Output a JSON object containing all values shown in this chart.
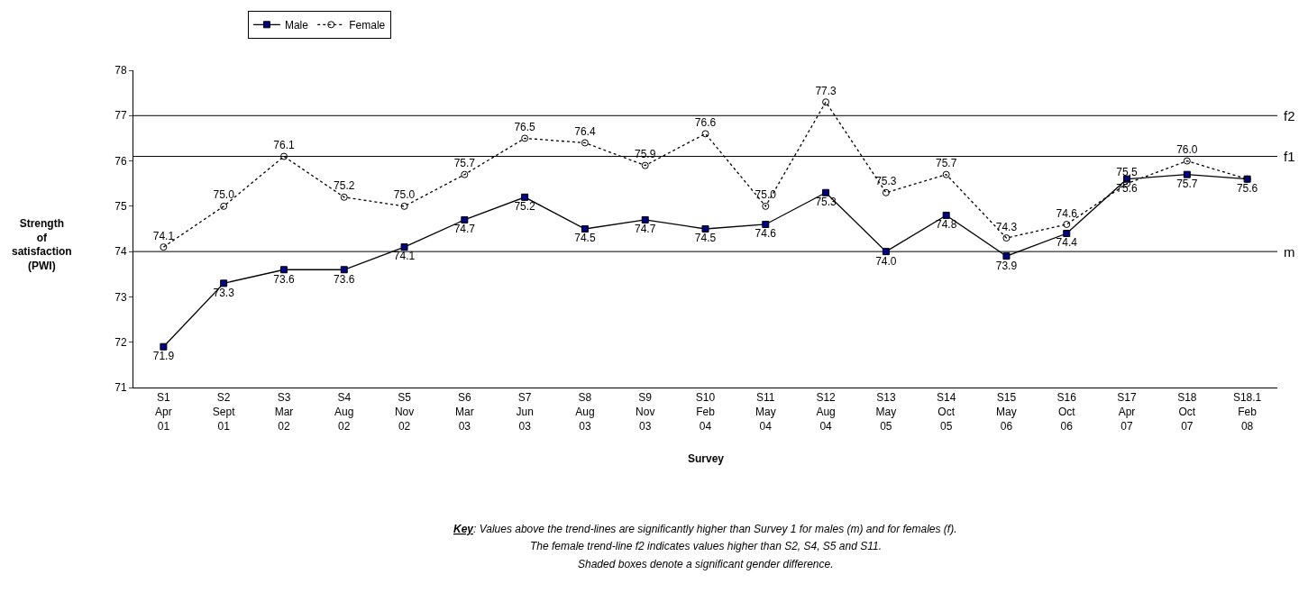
{
  "chart_data": {
    "type": "line",
    "categories": [
      "S1\nApr\n01",
      "S2\nSept\n01",
      "S3\nMar\n02",
      "S4\nAug\n02",
      "S5\nNov\n02",
      "S6\nMar\n03",
      "S7\nJun\n03",
      "S8\nAug\n03",
      "S9\nNov\n03",
      "S10\nFeb\n04",
      "S11\nMay\n04",
      "S12\nAug\n04",
      "S13\nMay\n05",
      "S14\nOct\n05",
      "S15\nMay\n06",
      "S16\nOct\n06",
      "S17\nApr\n07",
      "S18\nOct\n07",
      "S18.1\nFeb\n08"
    ],
    "series": [
      {
        "name": "Male",
        "color": "#000080",
        "marker": "square",
        "line_style": "solid",
        "values": [
          71.9,
          73.3,
          73.6,
          73.6,
          74.1,
          74.7,
          75.2,
          74.5,
          74.7,
          74.5,
          74.6,
          75.3,
          74.0,
          74.8,
          73.9,
          74.4,
          75.6,
          75.7,
          75.6
        ],
        "value_labels": [
          "71.9",
          "73.3",
          "73.6",
          "73.6",
          "74.1",
          "74.7",
          "75.2",
          "74.5",
          "74.7",
          "74.5",
          "74.6",
          "75.3",
          "74.0",
          "74.8",
          "73.9",
          "74.4",
          "75.6",
          "75.7",
          "75.6"
        ]
      },
      {
        "name": "Female",
        "color": "#000000",
        "marker": "circle",
        "line_style": "dotted",
        "values": [
          74.1,
          75.0,
          76.1,
          75.2,
          75.0,
          75.7,
          76.5,
          76.4,
          75.9,
          76.6,
          75.0,
          77.3,
          75.3,
          75.7,
          74.3,
          74.6,
          75.5,
          76.0,
          75.6
        ],
        "value_labels": [
          "74.1",
          "75.0",
          "76.1",
          "75.2",
          "75.0",
          "75.7",
          "76.5",
          "76.4",
          "75.9",
          "76.6",
          "75.0",
          "77.3",
          "75.3",
          "75.7",
          "74.3",
          "74.6",
          "75.5",
          "76.0",
          null
        ]
      }
    ],
    "xlabel": "Survey",
    "ylabel": "Strength\nof\nsatisfaction\n(PWI)",
    "ylim": [
      71,
      78
    ],
    "yticks": [
      71,
      72,
      73,
      74,
      75,
      76,
      77,
      78
    ],
    "grid": false,
    "legend": "top left",
    "ref_lines": [
      {
        "axis": "y",
        "value": 74.0,
        "label": "m",
        "color": "#000000",
        "line_style": "solid"
      },
      {
        "axis": "y",
        "value": 76.1,
        "label": "f1",
        "color": "#000000",
        "line_style": "solid"
      },
      {
        "axis": "y",
        "value": 77.0,
        "label": "f2",
        "color": "#000000",
        "line_style": "solid"
      }
    ],
    "annotations": [
      "Key: Values above the trend-lines are significantly higher than Survey 1 for males (m) and for females (f).",
      "The female trend-line f2 indicates values higher than S2, S4, S5 and S11.",
      "Shaded boxes denote a significant gender difference."
    ]
  }
}
